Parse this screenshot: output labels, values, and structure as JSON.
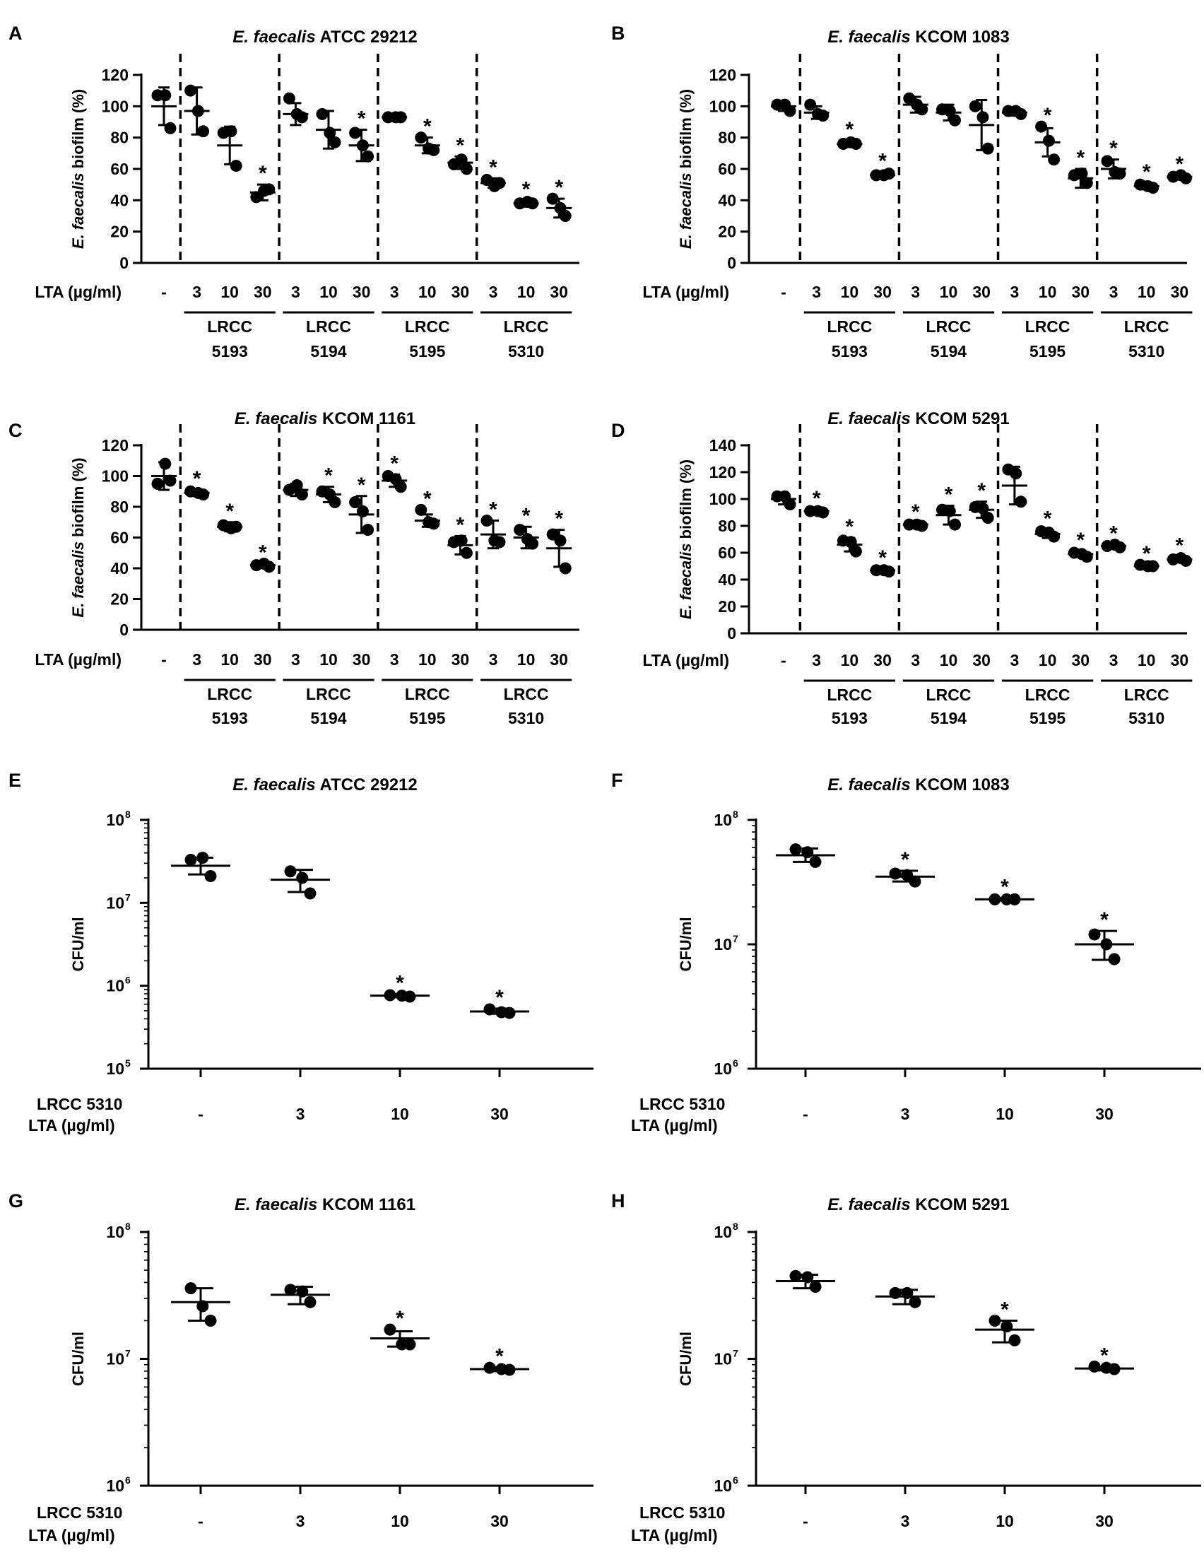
{
  "figure": {
    "dot_color": "#000000"
  },
  "chart_data": [
    {
      "panel": "A",
      "type": "scatter",
      "strain": "ATCC 29212",
      "title_italic": "E. faecalis",
      "title_rest": " ATCC 29212",
      "ylabel": "E. faecalis biofilm (%)",
      "ylabel_italic": "E. faecalis",
      "ylabel_rest": " biofilm (%)",
      "yscale": "linear",
      "ylim": [
        0,
        120
      ],
      "yticks": [
        0,
        20,
        40,
        60,
        80,
        100,
        120
      ],
      "xlabel": "LTA (µg/ml)",
      "categories": [
        "-",
        "3",
        "10",
        "30",
        "3",
        "10",
        "30",
        "3",
        "10",
        "30",
        "3",
        "10",
        "30"
      ],
      "groups": [
        {
          "label": [
            "LRCC",
            "5193"
          ],
          "span": [
            1,
            3
          ]
        },
        {
          "label": [
            "LRCC",
            "5194"
          ],
          "span": [
            4,
            6
          ]
        },
        {
          "label": [
            "LRCC",
            "5195"
          ],
          "span": [
            7,
            9
          ]
        },
        {
          "label": [
            "LRCC",
            "5310"
          ],
          "span": [
            10,
            12
          ]
        }
      ],
      "dividers": [
        0.5,
        3.5,
        6.5,
        9.5
      ],
      "mean": [
        100,
        97,
        75,
        45,
        95,
        85,
        75,
        93,
        75,
        64,
        51,
        38,
        35
      ],
      "sd": [
        12,
        15,
        12,
        5,
        7,
        12,
        10,
        1,
        5,
        4,
        3,
        2,
        6
      ],
      "points": [
        [
          107,
          107,
          86
        ],
        [
          110,
          97,
          84
        ],
        [
          83,
          84,
          62
        ],
        [
          42,
          46,
          47
        ],
        [
          105,
          95,
          93
        ],
        [
          95,
          83,
          77
        ],
        [
          83,
          75,
          68
        ],
        [
          93,
          93,
          93
        ],
        [
          80,
          73,
          72
        ],
        [
          63,
          66,
          60
        ],
        [
          53,
          49,
          51
        ],
        [
          38,
          39,
          38
        ],
        [
          41,
          35,
          30
        ]
      ],
      "significant": [
        false,
        false,
        false,
        true,
        false,
        false,
        true,
        false,
        true,
        true,
        true,
        true,
        true
      ]
    },
    {
      "panel": "B",
      "type": "scatter",
      "strain": "KCOM 1083",
      "title_italic": "E. faecalis",
      "title_rest": " KCOM 1083",
      "ylabel": "E. faecalis biofilm (%)",
      "ylabel_italic": "E. faecalis",
      "ylabel_rest": " biofilm (%)",
      "yscale": "linear",
      "ylim": [
        0,
        120
      ],
      "yticks": [
        0,
        20,
        40,
        60,
        80,
        100,
        120
      ],
      "xlabel": "LTA (µg/ml)",
      "categories": [
        "-",
        "3",
        "10",
        "30",
        "3",
        "10",
        "30",
        "3",
        "10",
        "30",
        "3",
        "10",
        "30"
      ],
      "groups": [
        {
          "label": [
            "LRCC",
            "5193"
          ],
          "span": [
            1,
            3
          ]
        },
        {
          "label": [
            "LRCC",
            "5194"
          ],
          "span": [
            4,
            6
          ]
        },
        {
          "label": [
            "LRCC",
            "5195"
          ],
          "span": [
            7,
            9
          ]
        },
        {
          "label": [
            "LRCC",
            "5310"
          ],
          "span": [
            10,
            12
          ]
        }
      ],
      "dividers": [
        0.5,
        3.5,
        6.5,
        9.5
      ],
      "mean": [
        100,
        96,
        76,
        56,
        101,
        96,
        88,
        96,
        77,
        54,
        60,
        49,
        55
      ],
      "sd": [
        3,
        4,
        2,
        2,
        5,
        5,
        16,
        2,
        9,
        6,
        6,
        2,
        1
      ],
      "points": [
        [
          101,
          101,
          97
        ],
        [
          101,
          95,
          94
        ],
        [
          76,
          77,
          76
        ],
        [
          56,
          56,
          57
        ],
        [
          105,
          101,
          98
        ],
        [
          98,
          97,
          91
        ],
        [
          100,
          93,
          73
        ],
        [
          97,
          97,
          95
        ],
        [
          87,
          78,
          66
        ],
        [
          56,
          57,
          51
        ],
        [
          65,
          58,
          57
        ],
        [
          50,
          49,
          48
        ],
        [
          55,
          56,
          54
        ]
      ],
      "significant": [
        false,
        false,
        true,
        true,
        false,
        false,
        false,
        false,
        true,
        true,
        true,
        true,
        true
      ]
    },
    {
      "panel": "C",
      "type": "scatter",
      "strain": "KCOM 1161",
      "title_italic": "E. faecalis",
      "title_rest": " KCOM 1161",
      "ylabel": "E. faecalis biofilm (%)",
      "ylabel_italic": "E. faecalis",
      "ylabel_rest": " biofilm (%)",
      "yscale": "linear",
      "ylim": [
        0,
        120
      ],
      "yticks": [
        0,
        20,
        40,
        60,
        80,
        100,
        120
      ],
      "xlabel": "LTA (µg/ml)",
      "categories": [
        "-",
        "3",
        "10",
        "30",
        "3",
        "10",
        "30",
        "3",
        "10",
        "30",
        "3",
        "10",
        "30"
      ],
      "groups": [
        {
          "label": [
            "LRCC",
            "5193"
          ],
          "span": [
            1,
            3
          ]
        },
        {
          "label": [
            "LRCC",
            "5194"
          ],
          "span": [
            4,
            6
          ]
        },
        {
          "label": [
            "LRCC",
            "5195"
          ],
          "span": [
            7,
            9
          ]
        },
        {
          "label": [
            "LRCC",
            "5310"
          ],
          "span": [
            10,
            12
          ]
        }
      ],
      "dividers": [
        0.5,
        3.5,
        6.5,
        9.5
      ],
      "mean": [
        100,
        89,
        67,
        42,
        91,
        88,
        75,
        97,
        71,
        55,
        62,
        60,
        53
      ],
      "sd": [
        9,
        2,
        3,
        1,
        4,
        5,
        12,
        4,
        4,
        6,
        9,
        7,
        12
      ],
      "points": [
        [
          95,
          108,
          97
        ],
        [
          90,
          89,
          88
        ],
        [
          68,
          66,
          67
        ],
        [
          42,
          43,
          41
        ],
        [
          91,
          94,
          88
        ],
        [
          90,
          88,
          83
        ],
        [
          83,
          77,
          65
        ],
        [
          100,
          98,
          93
        ],
        [
          78,
          70,
          69
        ],
        [
          57,
          58,
          50
        ],
        [
          71,
          58,
          57
        ],
        [
          65,
          59,
          56
        ],
        [
          62,
          58,
          40
        ]
      ],
      "significant": [
        false,
        true,
        true,
        true,
        false,
        true,
        true,
        true,
        true,
        true,
        true,
        true,
        true
      ]
    },
    {
      "panel": "D",
      "type": "scatter",
      "strain": "KCOM 5291",
      "title_italic": "E. faecalis",
      "title_rest": " KCOM 5291",
      "ylabel": "E. faecalis biofilm (%)",
      "ylabel_italic": "E. faecalis",
      "ylabel_rest": " biofilm (%)",
      "yscale": "linear",
      "ylim": [
        0,
        140
      ],
      "yticks": [
        0,
        20,
        40,
        60,
        80,
        100,
        120,
        140
      ],
      "xlabel": "LTA (µg/ml)",
      "categories": [
        "-",
        "3",
        "10",
        "30",
        "3",
        "10",
        "30",
        "3",
        "10",
        "30",
        "3",
        "10",
        "30"
      ],
      "groups": [
        {
          "label": [
            "LRCC",
            "5193"
          ],
          "span": [
            1,
            3
          ]
        },
        {
          "label": [
            "LRCC",
            "5194"
          ],
          "span": [
            4,
            6
          ]
        },
        {
          "label": [
            "LRCC",
            "5195"
          ],
          "span": [
            7,
            9
          ]
        },
        {
          "label": [
            "LRCC",
            "5310"
          ],
          "span": [
            10,
            12
          ]
        }
      ],
      "dividers": [
        0.5,
        3.5,
        6.5,
        9.5
      ],
      "mean": [
        100,
        91,
        66,
        47,
        81,
        88,
        92,
        110,
        74,
        59,
        65,
        50,
        55
      ],
      "sd": [
        4,
        1,
        5,
        1,
        1,
        7,
        6,
        14,
        3,
        2,
        1,
        1,
        2
      ],
      "points": [
        [
          102,
          102,
          96
        ],
        [
          91,
          91,
          90
        ],
        [
          69,
          68,
          61
        ],
        [
          47,
          47,
          46
        ],
        [
          81,
          81,
          80
        ],
        [
          92,
          91,
          81
        ],
        [
          94,
          93,
          86
        ],
        [
          122,
          119,
          98
        ],
        [
          76,
          75,
          72
        ],
        [
          60,
          59,
          57
        ],
        [
          65,
          66,
          64
        ],
        [
          51,
          50,
          50
        ],
        [
          55,
          56,
          54
        ]
      ],
      "significant": [
        false,
        true,
        true,
        true,
        true,
        true,
        true,
        false,
        true,
        true,
        true,
        true,
        true
      ]
    },
    {
      "panel": "E",
      "type": "scatter",
      "strain": "ATCC 29212",
      "title_italic": "E. faecalis",
      "title_rest": " ATCC 29212",
      "ylabel": "CFU/ml",
      "yscale": "log",
      "ylim_log10": [
        5,
        8
      ],
      "ytick_exponents": [
        5,
        6,
        7,
        8
      ],
      "ytick_base": "10",
      "xlabel": [
        "LRCC 5310",
        "LTA (µg/ml)"
      ],
      "categories": [
        "-",
        "3",
        "10",
        "30"
      ],
      "mean": [
        28000000,
        19000000,
        760000,
        490000
      ],
      "sd_low": [
        22000000,
        13500000,
        730000,
        460000
      ],
      "sd_high": [
        35000000,
        25000000,
        790000,
        530000
      ],
      "points": [
        [
          33000000,
          35000000,
          21000000
        ],
        [
          24000000,
          20000000,
          13000000
        ],
        [
          770000,
          760000,
          740000
        ],
        [
          520000,
          480000,
          470000
        ]
      ],
      "significant": [
        false,
        false,
        true,
        true
      ]
    },
    {
      "panel": "F",
      "type": "scatter",
      "strain": "KCOM 1083",
      "title_italic": "E. faecalis",
      "title_rest": " KCOM 1083",
      "ylabel": "CFU/ml",
      "yscale": "log",
      "ylim_log10": [
        6,
        8
      ],
      "ytick_exponents": [
        6,
        7,
        8
      ],
      "ytick_base": "10",
      "xlabel": [
        "LRCC 5310",
        "LTA (µg/ml)"
      ],
      "categories": [
        "-",
        "3",
        "10",
        "30"
      ],
      "mean": [
        52000000,
        35000000,
        23000000,
        10000000
      ],
      "sd_low": [
        46000000,
        32000000,
        22500000,
        7500000
      ],
      "sd_high": [
        59000000,
        39000000,
        23500000,
        12800000
      ],
      "points": [
        [
          58000000,
          55000000,
          46000000
        ],
        [
          37000000,
          36000000,
          32000000
        ],
        [
          23000000,
          23000000,
          23000000
        ],
        [
          12000000,
          10000000,
          7600000
        ]
      ],
      "significant": [
        false,
        true,
        true,
        true
      ]
    },
    {
      "panel": "G",
      "type": "scatter",
      "strain": "KCOM 1161",
      "title_italic": "E. faecalis",
      "title_rest": " KCOM 1161",
      "ylabel": "CFU/ml",
      "yscale": "log",
      "ylim_log10": [
        6,
        8
      ],
      "ytick_exponents": [
        6,
        7,
        8
      ],
      "ytick_base": "10",
      "xlabel": [
        "LRCC 5310",
        "LTA (µg/ml)"
      ],
      "categories": [
        "-",
        "3",
        "10",
        "30"
      ],
      "mean": [
        28000000,
        32000000,
        14500000,
        8300000
      ],
      "sd_low": [
        20000000,
        27000000,
        12500000,
        8000000
      ],
      "sd_high": [
        36000000,
        37000000,
        16500000,
        8600000
      ],
      "points": [
        [
          36000000,
          26000000,
          20000000
        ],
        [
          35000000,
          34000000,
          28000000
        ],
        [
          17000000,
          13000000,
          13000000
        ],
        [
          8500000,
          8300000,
          8200000
        ]
      ],
      "significant": [
        false,
        false,
        true,
        true
      ]
    },
    {
      "panel": "H",
      "type": "scatter",
      "strain": "KCOM 5291",
      "title_italic": "E. faecalis",
      "title_rest": " KCOM 5291",
      "ylabel": "CFU/ml",
      "yscale": "log",
      "ylim_log10": [
        6,
        8
      ],
      "ytick_exponents": [
        6,
        7,
        8
      ],
      "ytick_base": "10",
      "xlabel": [
        "LRCC 5310",
        "LTA (µg/ml)"
      ],
      "categories": [
        "-",
        "3",
        "10",
        "30"
      ],
      "mean": [
        41000000,
        31000000,
        17000000,
        8400000
      ],
      "sd_low": [
        36000000,
        27000000,
        13500000,
        8100000
      ],
      "sd_high": [
        46000000,
        35000000,
        20000000,
        8700000
      ],
      "points": [
        [
          45000000,
          44000000,
          37000000
        ],
        [
          33000000,
          33000000,
          28000000
        ],
        [
          20000000,
          18000000,
          14000000
        ],
        [
          8700000,
          8500000,
          8300000
        ]
      ],
      "significant": [
        false,
        false,
        true,
        true
      ]
    }
  ]
}
